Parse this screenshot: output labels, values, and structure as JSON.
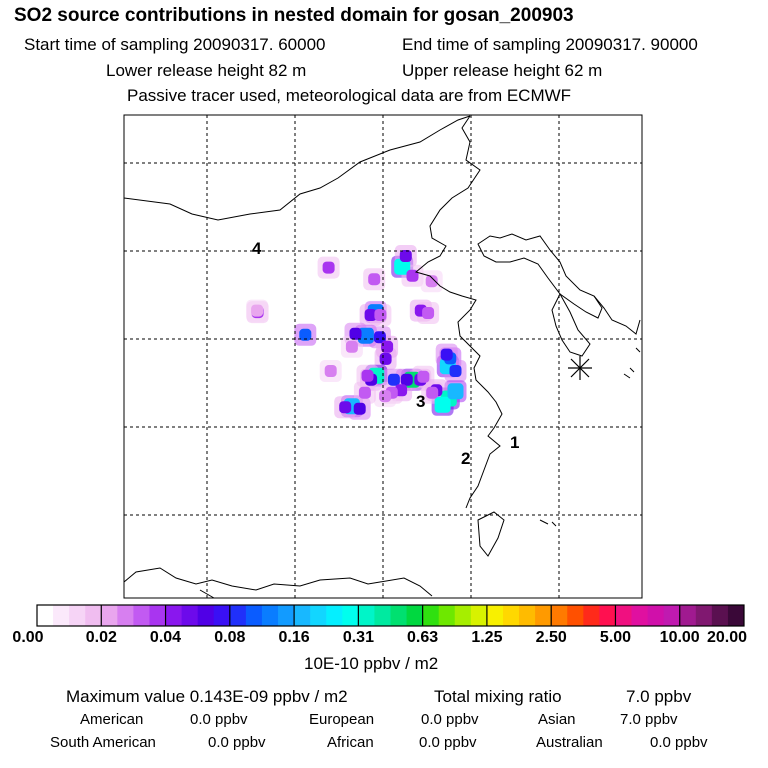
{
  "header": {
    "title": "SO2 source contributions in nested domain for gosan_200903",
    "start_label": "Start time of sampling 20090317. 60000",
    "end_label": "End time of sampling 20090317. 90000",
    "lower_label": "Lower release height   82 m",
    "upper_label": "Upper release height   62 m",
    "tracer_label": "Passive tracer used, meteorological data are from ECMWF"
  },
  "chart_data": {
    "type": "heatmap",
    "title": "SO2 source contributions in nested domain for gosan_200903",
    "colorbar": {
      "ticks": [
        "0.00",
        "0.02",
        "0.04",
        "0.08",
        "0.16",
        "0.31",
        "0.63",
        "1.25",
        "2.50",
        "5.00",
        "10.00",
        "20.00"
      ],
      "units": "10E-10 ppbv / m2",
      "colors": [
        "#ffffff",
        "#fbe9fb",
        "#f6d4f6",
        "#f0bdf0",
        "#e9a6ee",
        "#d77ff0",
        "#c25af2",
        "#a935f0",
        "#8a17ee",
        "#6d0aeb",
        "#5000e6",
        "#3a10f5",
        "#2030fa",
        "#0a5cff",
        "#0a7dff",
        "#129bff",
        "#18b8ff",
        "#12d6ff",
        "#05efff",
        "#00ffee",
        "#00f5c8",
        "#00eaa0",
        "#00e070",
        "#00d840",
        "#30e010",
        "#6ee800",
        "#a6ee00",
        "#d8f200",
        "#f8f000",
        "#ffd800",
        "#ffbb00",
        "#ff9a00",
        "#ff7a00",
        "#ff5000",
        "#ff2a1a",
        "#ff1050",
        "#f01080",
        "#e010a0",
        "#d010aa",
        "#c01ab0",
        "#a01a90",
        "#801870",
        "#5a1050",
        "#3a0838"
      ]
    },
    "grid_points": [
      {
        "x": 0.537,
        "y": 0.314,
        "level": 19
      },
      {
        "x": 0.544,
        "y": 0.292,
        "level": 9
      },
      {
        "x": 0.557,
        "y": 0.333,
        "level": 7
      },
      {
        "x": 0.483,
        "y": 0.34,
        "level": 6
      },
      {
        "x": 0.395,
        "y": 0.316,
        "level": 7
      },
      {
        "x": 0.594,
        "y": 0.344,
        "level": 5
      },
      {
        "x": 0.486,
        "y": 0.408,
        "level": 14
      },
      {
        "x": 0.476,
        "y": 0.414,
        "level": 9
      },
      {
        "x": 0.495,
        "y": 0.414,
        "level": 6
      },
      {
        "x": 0.573,
        "y": 0.405,
        "level": 8
      },
      {
        "x": 0.587,
        "y": 0.41,
        "level": 6
      },
      {
        "x": 0.467,
        "y": 0.457,
        "level": 14
      },
      {
        "x": 0.494,
        "y": 0.46,
        "level": 11
      },
      {
        "x": 0.447,
        "y": 0.453,
        "level": 10
      },
      {
        "x": 0.508,
        "y": 0.48,
        "level": 8
      },
      {
        "x": 0.505,
        "y": 0.505,
        "level": 9
      },
      {
        "x": 0.44,
        "y": 0.48,
        "level": 5
      },
      {
        "x": 0.35,
        "y": 0.455,
        "level": 13
      },
      {
        "x": 0.258,
        "y": 0.408,
        "level": 7
      },
      {
        "x": 0.487,
        "y": 0.54,
        "level": 20
      },
      {
        "x": 0.477,
        "y": 0.548,
        "level": 10
      },
      {
        "x": 0.47,
        "y": 0.54,
        "level": 7
      },
      {
        "x": 0.556,
        "y": 0.548,
        "level": 22
      },
      {
        "x": 0.546,
        "y": 0.548,
        "level": 10
      },
      {
        "x": 0.521,
        "y": 0.548,
        "level": 12
      },
      {
        "x": 0.572,
        "y": 0.548,
        "level": 9
      },
      {
        "x": 0.578,
        "y": 0.542,
        "level": 6
      },
      {
        "x": 0.625,
        "y": 0.52,
        "level": 17
      },
      {
        "x": 0.63,
        "y": 0.504,
        "level": 13
      },
      {
        "x": 0.623,
        "y": 0.496,
        "level": 11
      },
      {
        "x": 0.64,
        "y": 0.53,
        "level": 12
      },
      {
        "x": 0.627,
        "y": 0.587,
        "level": 20
      },
      {
        "x": 0.615,
        "y": 0.6,
        "level": 19
      },
      {
        "x": 0.64,
        "y": 0.572,
        "level": 16
      },
      {
        "x": 0.603,
        "y": 0.57,
        "level": 9
      },
      {
        "x": 0.595,
        "y": 0.575,
        "level": 6
      },
      {
        "x": 0.44,
        "y": 0.603,
        "level": 16
      },
      {
        "x": 0.455,
        "y": 0.608,
        "level": 10
      },
      {
        "x": 0.427,
        "y": 0.605,
        "level": 9
      },
      {
        "x": 0.535,
        "y": 0.57,
        "level": 8
      },
      {
        "x": 0.517,
        "y": 0.575,
        "level": 6
      },
      {
        "x": 0.504,
        "y": 0.582,
        "level": 5
      },
      {
        "x": 0.465,
        "y": 0.575,
        "level": 6
      },
      {
        "x": 0.399,
        "y": 0.53,
        "level": 5
      },
      {
        "x": 0.257,
        "y": 0.405,
        "level": 4
      }
    ],
    "source_labels": [
      "4",
      "3",
      "2",
      "1"
    ]
  },
  "summary": {
    "max_label": "Maximum value  0.143E-09 ppbv / m2",
    "total_label": "Total mixing ratio",
    "total_value": "7.0 ppbv",
    "rows": [
      [
        {
          "name": "American",
          "value": "0.0 ppbv"
        },
        {
          "name": "European",
          "value": "0.0 ppbv"
        },
        {
          "name": "Asian",
          "value": "7.0 ppbv"
        }
      ],
      [
        {
          "name": "South American",
          "value": "0.0 ppbv"
        },
        {
          "name": "African",
          "value": "0.0 ppbv"
        },
        {
          "name": "Australian",
          "value": "0.0 ppbv"
        }
      ]
    ]
  }
}
